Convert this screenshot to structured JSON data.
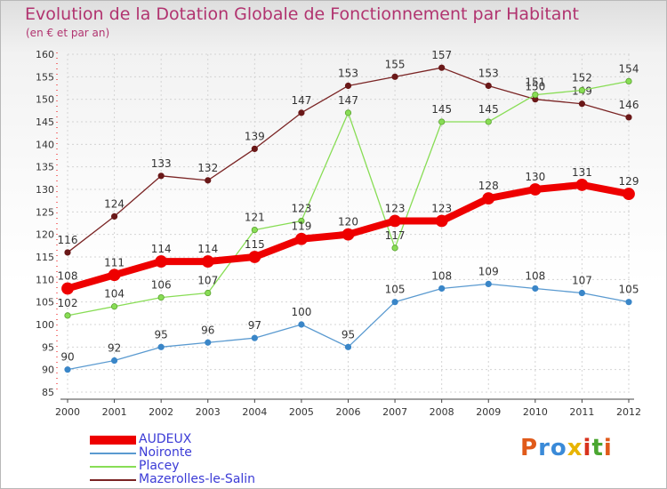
{
  "title": "Evolution de la Dotation Globale de Fonctionnement par Habitant",
  "subtitle": "(en € et par an)",
  "logo": "Proxiti",
  "chart_data": {
    "type": "line",
    "title": "Evolution de la Dotation Globale de Fonctionnement par Habitant",
    "subtitle": "(en € et par an)",
    "xlabel": "",
    "ylabel": "",
    "ylim": [
      85,
      160
    ],
    "yticks": [
      85,
      90,
      95,
      100,
      105,
      110,
      115,
      120,
      125,
      130,
      135,
      140,
      145,
      150,
      155,
      160
    ],
    "categories": [
      "2000",
      "2001",
      "2002",
      "2003",
      "2004",
      "2005",
      "2006",
      "2007",
      "2008",
      "2009",
      "2010",
      "2011",
      "2012"
    ],
    "grid": true,
    "legend": "bottom-left",
    "series": [
      {
        "name": "AUDEUX",
        "color": "#ee0000",
        "values": [
          108,
          111,
          114,
          114,
          115,
          119,
          120,
          123,
          123,
          128,
          130,
          131,
          129
        ]
      },
      {
        "name": "Noironte",
        "color": "#5a9ad0",
        "values": [
          90,
          92,
          95,
          96,
          97,
          100,
          95,
          105,
          108,
          109,
          108,
          107,
          105
        ]
      },
      {
        "name": "Placey",
        "color": "#88dd55",
        "values": [
          102,
          104,
          106,
          107,
          121,
          123,
          147,
          117,
          145,
          145,
          151,
          152,
          154
        ]
      },
      {
        "name": "Mazerolles-le-Salin",
        "color": "#7a2424",
        "values": [
          116,
          124,
          133,
          132,
          139,
          147,
          153,
          155,
          157,
          153,
          150,
          149,
          146
        ]
      }
    ]
  }
}
